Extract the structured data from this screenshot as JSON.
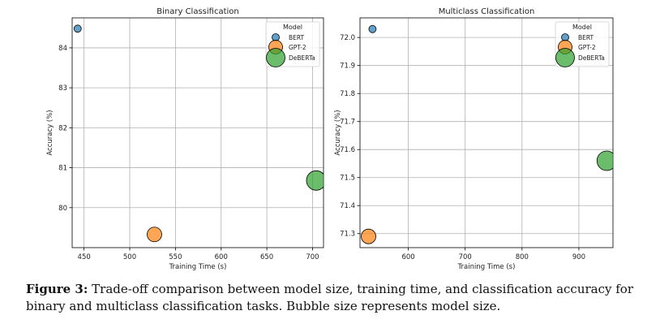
{
  "chart_data": [
    {
      "type": "scatter",
      "title": "Binary Classification",
      "xlabel": "Training Time (s)",
      "ylabel": "Accuracy (%)",
      "xlim": [
        437,
        712
      ],
      "ylim": [
        79.0,
        84.75
      ],
      "xticks": [
        450,
        500,
        550,
        600,
        650,
        700
      ],
      "yticks": [
        80,
        81,
        82,
        83,
        84
      ],
      "xtick_labels": [
        "450",
        "500",
        "550",
        "600",
        "650",
        "700"
      ],
      "ytick_labels": [
        "80",
        "81",
        "82",
        "83",
        "84"
      ],
      "grid": true,
      "legend_title": "Model",
      "legend_position": "top-right",
      "series": [
        {
          "name": "BERT",
          "x": 443,
          "y": 84.48,
          "size": "small",
          "color": "#1f77b4"
        },
        {
          "name": "GPT-2",
          "x": 527,
          "y": 79.33,
          "size": "medium",
          "color": "#ff7f0e"
        },
        {
          "name": "DeBERTa",
          "x": 704,
          "y": 80.68,
          "size": "large",
          "color": "#2ca02c"
        }
      ]
    },
    {
      "type": "scatter",
      "title": "Multiclass Classification",
      "xlabel": "Training Time (s)",
      "ylabel": "Accuracy (%)",
      "xlim": [
        515,
        960
      ],
      "ylim": [
        71.25,
        72.07
      ],
      "xticks": [
        600,
        700,
        800,
        900
      ],
      "yticks": [
        71.3,
        71.4,
        71.5,
        71.6,
        71.7,
        71.8,
        71.9,
        72.0
      ],
      "xtick_labels": [
        "600",
        "700",
        "800",
        "900"
      ],
      "ytick_labels": [
        "71.3",
        "71.4",
        "71.5",
        "71.6",
        "71.7",
        "71.8",
        "71.9",
        "72.0"
      ],
      "grid": true,
      "legend_title": "Model",
      "legend_position": "top-right",
      "series": [
        {
          "name": "BERT",
          "x": 537,
          "y": 72.03,
          "size": "small",
          "color": "#1f77b4"
        },
        {
          "name": "GPT-2",
          "x": 530,
          "y": 71.29,
          "size": "medium",
          "color": "#ff7f0e"
        },
        {
          "name": "DeBERTa",
          "x": 949,
          "y": 71.56,
          "size": "large",
          "color": "#2ca02c"
        }
      ]
    }
  ],
  "caption": {
    "label": "Figure 3:",
    "text": " Trade-off comparison between model size, training time, and classification accuracy for binary and multiclass classification tasks. Bubble size represents model size."
  }
}
